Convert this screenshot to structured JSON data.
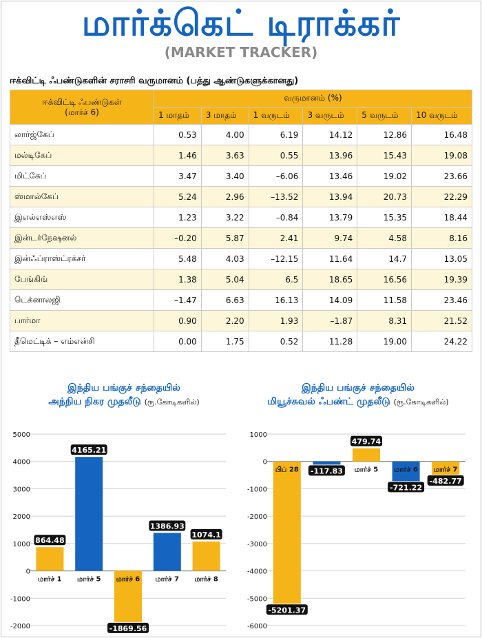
{
  "header": {
    "title": "மார்க்கெட் டிராக்கர்",
    "subtitle": "(MARKET TRACKER)"
  },
  "table": {
    "caption": "ஈக்விட்டி ஃபண்டுகளின் சராசரி வருமானம் (பத்து ஆண்டுகளுக்கானது)",
    "name_header_line1": "ஈக்விட்டி ஃபண்டுகள்",
    "name_header_line2": "(மார்ச் 6)",
    "returns_header": "வருமானம் (%)",
    "periods": [
      "1 மாதம்",
      "3 மாதம்",
      "1 வருடம்",
      "3 வருடம்",
      "5 வருடம்",
      "10 வருடம்"
    ],
    "rows": [
      {
        "name": "லார்ஜ்கேப்",
        "values": [
          "0.53",
          "4.00",
          "6.19",
          "14.12",
          "12.86",
          "16.48"
        ]
      },
      {
        "name": "மல்டிகேப்",
        "values": [
          "1.46",
          "3.63",
          "0.55",
          "13.96",
          "15.43",
          "19.08"
        ]
      },
      {
        "name": "மிட்கேப்",
        "values": [
          "3.47",
          "3.40",
          "–6.06",
          "13.46",
          "19.02",
          "23.66"
        ]
      },
      {
        "name": "ஸ்மால்கேப்",
        "values": [
          "5.24",
          "2.96",
          "–13.52",
          "13.94",
          "20.73",
          "22.29"
        ]
      },
      {
        "name": "இஎல்எஸ்எஸ்",
        "values": [
          "1.23",
          "3.22",
          "–0.84",
          "13.79",
          "15.35",
          "18.44"
        ]
      },
      {
        "name": "இன்டர்நேஷனல்",
        "values": [
          "–0.20",
          "5.87",
          "2.41",
          "9.74",
          "4.58",
          "8.16"
        ]
      },
      {
        "name": "இன்ஃப்ராஸ்ட்ரக்சர்",
        "values": [
          "5.48",
          "4.03",
          "–12.15",
          "11.64",
          "14.7",
          "13.05"
        ]
      },
      {
        "name": "பேங்கிங்",
        "values": [
          "1.38",
          "5.04",
          "6.5",
          "18.65",
          "16.56",
          "19.39"
        ]
      },
      {
        "name": "டெக்னாலஜி",
        "values": [
          "–1.47",
          "6.63",
          "16.13",
          "14.09",
          "11.58",
          "23.46"
        ]
      },
      {
        "name": "பார்மா",
        "values": [
          "0.90",
          "2.20",
          "1.93",
          "–1.87",
          "8.31",
          "21.52"
        ]
      },
      {
        "name": "தீமெட்டிக் – எம்என்சி",
        "values": [
          "0.00",
          "1.75",
          "0.52",
          "11.28",
          "19.00",
          "24.22"
        ]
      }
    ]
  },
  "colors": {
    "yellow": "#f5b418",
    "blue": "#1565c0",
    "label_bg": "#111111"
  },
  "chart_data": [
    {
      "type": "bar",
      "title_line1": "இந்திய பங்குச் சந்தையில்",
      "title_line2": "அந்நிய நிகர முதலீடு",
      "title_unit": "(ரூ.கோடிகளில்)",
      "categories": [
        "மார்ச் 1",
        "மார்ச் 5",
        "மார்ச் 6",
        "மார்ச் 7",
        "மார்ச் 8"
      ],
      "values": [
        864.48,
        4165.21,
        -1869.56,
        1386.93,
        1074.1
      ],
      "value_labels": [
        "864.48",
        "4165.21",
        "-1869.56",
        "1386.93",
        "1074.1"
      ],
      "bar_colors": [
        "#f5b418",
        "#1565c0",
        "#f5b418",
        "#1565c0",
        "#f5b418"
      ],
      "ylim": [
        -2000,
        5000
      ],
      "yticks": [
        -2000,
        -1000,
        0,
        1000,
        2000,
        3000,
        4000,
        5000
      ],
      "grid": true
    },
    {
      "type": "bar",
      "title_line1": "இந்திய பங்குச் சந்தையில்",
      "title_line2": "மியூச்சுவல் ஃபண்ட் முதலீடு",
      "title_unit": "(ரூ.கோடிகளில்)",
      "categories": [
        "பிப் 28",
        "மார்ச் 1",
        "மார்ச் 5",
        "மார்ச் 6",
        "மார்ச் 7"
      ],
      "values": [
        -5201.37,
        -117.83,
        479.74,
        -721.22,
        -482.77
      ],
      "value_labels": [
        "-5201.37",
        "-117.83",
        "479.74",
        "-721.22",
        "-482.77"
      ],
      "bar_colors": [
        "#f5b418",
        "#1565c0",
        "#f5b418",
        "#1565c0",
        "#f5b418"
      ],
      "ylim": [
        -6000,
        1000
      ],
      "yticks": [
        -6000,
        -5000,
        -4000,
        -3000,
        -2000,
        -1000,
        0,
        1000
      ],
      "grid": true
    }
  ]
}
